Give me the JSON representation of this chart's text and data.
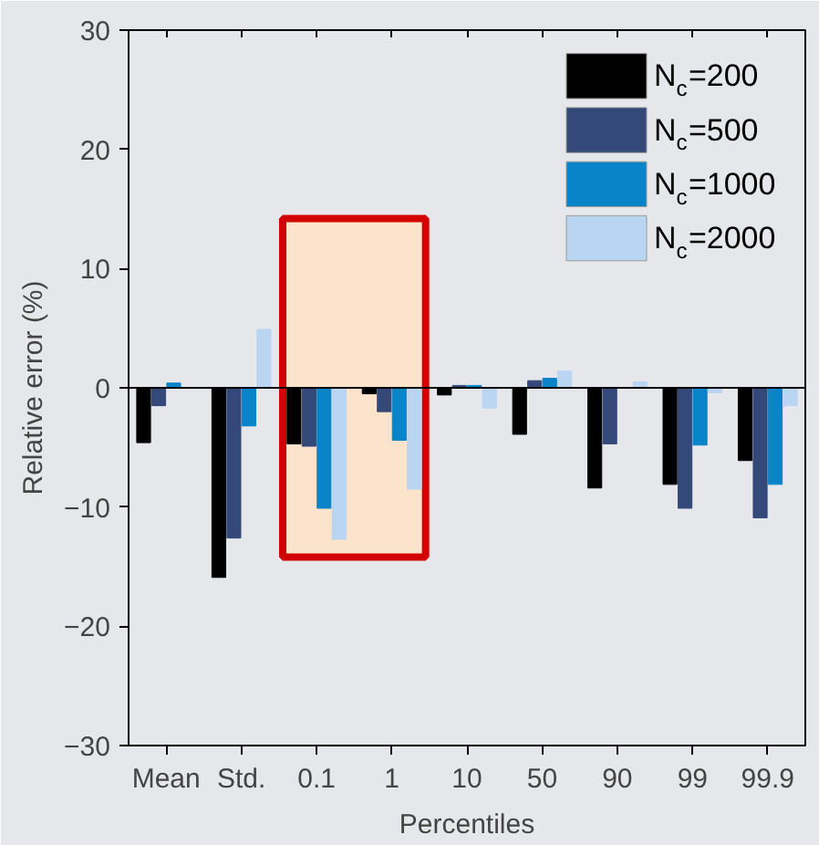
{
  "chart_data": {
    "type": "bar",
    "xlabel": "Percentiles",
    "ylabel": "Relative error (%)",
    "categories": [
      "Mean",
      "Std.",
      "0.1",
      "1",
      "10",
      "50",
      "90",
      "99",
      "99.9"
    ],
    "series": [
      {
        "name": "N$_{c}$=200",
        "color": "#000000",
        "values": [
          -4.6,
          -15.9,
          -4.7,
          -0.5,
          -0.6,
          -3.9,
          -8.4,
          -8.1,
          -6.1
        ]
      },
      {
        "name": "N$_{c}$=500",
        "color": "#34497a",
        "values": [
          -1.5,
          -12.6,
          -4.9,
          -2.0,
          0.2,
          0.6,
          -4.7,
          -10.1,
          -10.9
        ]
      },
      {
        "name": "N$_{c}$=1000",
        "color": "#0a84c8",
        "values": [
          0.4,
          -3.2,
          -10.1,
          -4.4,
          0.2,
          0.8,
          null,
          -4.8,
          -8.1
        ]
      },
      {
        "name": "N$_{c}$=2000",
        "color": "#b9d5f2",
        "values": [
          0.0,
          4.9,
          -12.7,
          -8.5,
          -1.7,
          1.4,
          0.5,
          -0.4,
          -1.5
        ]
      }
    ],
    "ylim": [
      -30,
      30
    ],
    "yticks": [
      -30,
      -20,
      -10,
      0,
      10,
      20,
      30
    ],
    "bands": [
      {
        "axis": "x",
        "from": "0.1",
        "to": "1",
        "color": "#d40000"
      }
    ],
    "ref_lines": [
      {
        "axis": "y",
        "value": 0,
        "color": "#000000"
      }
    ],
    "legend": "top right",
    "grid": false
  }
}
